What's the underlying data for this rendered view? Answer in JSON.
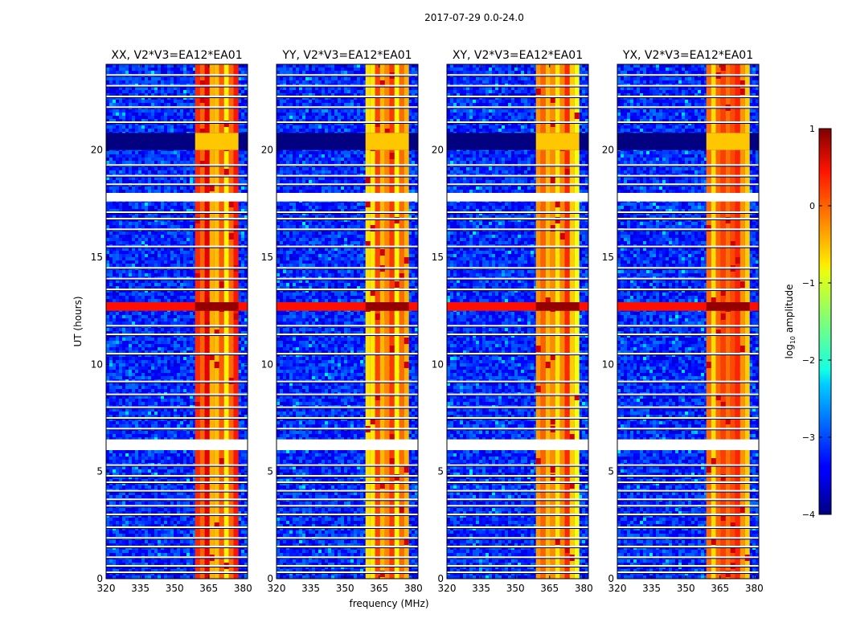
{
  "figure": {
    "suptitle": "2017-07-29 0.0-24.0"
  },
  "chart_data": {
    "type": "heatmap",
    "shared": {
      "xlabel": "frequency (MHz)",
      "ylabel": "UT (hours)",
      "xlim": [
        320,
        382
      ],
      "ylim": [
        0,
        24
      ],
      "xticks": [
        320,
        335,
        350,
        365,
        380
      ],
      "yticks": [
        0,
        5,
        10,
        15,
        20
      ],
      "colormap": "jet",
      "colorbar": {
        "label": "log",
        "label_sub": "10",
        "label_tail": " amplitude",
        "range": [
          -4,
          1
        ],
        "ticks": [
          1,
          0,
          -1,
          -2,
          -3,
          -4
        ],
        "tick_labels": [
          "1",
          "0",
          "−1",
          "−2",
          "−3",
          "−4"
        ]
      },
      "bright_band_mhz": [
        359,
        378
      ],
      "bright_band_log_amplitude": [
        -1,
        0.5
      ],
      "background_log_amplitude": [
        -3.6,
        -2.8
      ],
      "saturated_row_ut": [
        12.5,
        12.9
      ],
      "blank_rows_ut": [
        [
          6.0,
          6.5
        ],
        [
          17.6,
          18.0
        ]
      ],
      "flagged_rows_ut": [
        [
          20.0,
          20.8
        ]
      ],
      "gap_lines_ut": [
        0.3,
        0.6,
        1.0,
        1.5,
        1.9,
        2.4,
        3.0,
        3.4,
        3.7,
        4.1,
        4.5,
        4.8,
        5.3,
        7.0,
        7.5,
        8.0,
        8.6,
        9.2,
        10.5,
        11.4,
        11.8,
        13.5,
        14.0,
        14.5,
        15.5,
        16.3,
        16.8,
        17.1,
        18.4,
        18.8,
        19.3,
        21.3,
        22.0,
        22.5,
        23.0,
        23.5
      ]
    },
    "panels": [
      {
        "title": "XX, V2*V3=EA12*EA01",
        "polarization": "XX"
      },
      {
        "title": "YY, V2*V3=EA12*EA01",
        "polarization": "YY"
      },
      {
        "title": "XY, V2*V3=EA12*EA01",
        "polarization": "XY"
      },
      {
        "title": "YX, V2*V3=EA12*EA01",
        "polarization": "YX"
      }
    ]
  }
}
